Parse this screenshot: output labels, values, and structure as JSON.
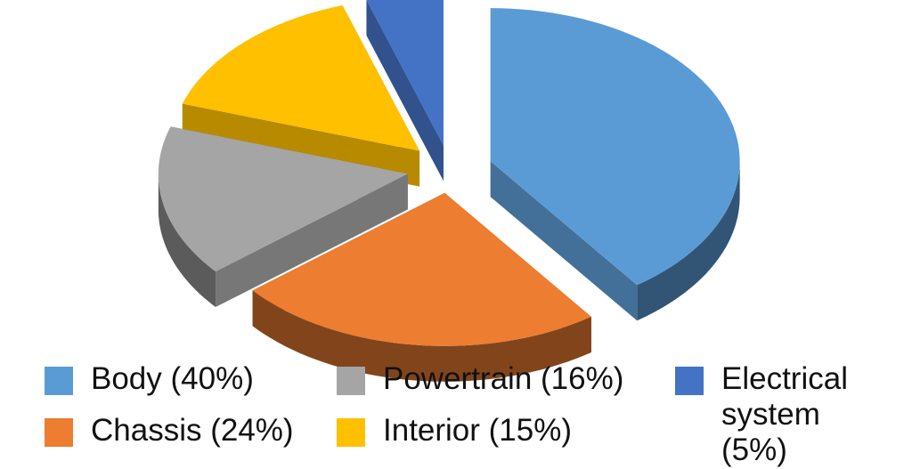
{
  "chart_data": {
    "type": "pie",
    "style": "3d-exploded",
    "slices": [
      {
        "name": "Body",
        "value": 40,
        "color": "#5B9BD5",
        "label": "Body (40%)"
      },
      {
        "name": "Chassis",
        "value": 24,
        "color": "#ED7D31",
        "label": "Chassis (24%)"
      },
      {
        "name": "Powertrain",
        "value": 16,
        "color": "#A5A5A5",
        "label": "Powertrain (16%)"
      },
      {
        "name": "Interior",
        "value": 15,
        "color": "#FFC000",
        "label": "Interior (15%)"
      },
      {
        "name": "Electrical system",
        "value": 5,
        "color": "#4472C4",
        "label": "Electrical system (5%)"
      }
    ],
    "legend_position": "bottom"
  }
}
